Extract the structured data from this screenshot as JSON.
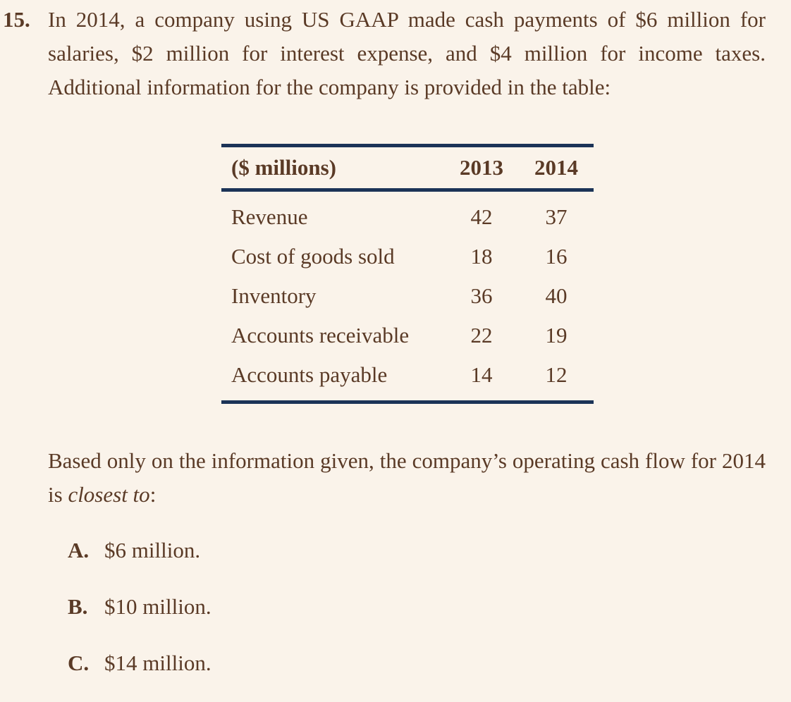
{
  "question": {
    "number": "15.",
    "stem": "In 2014, a company using US GAAP made cash payments of $6 million for salaries, $2 million for interest expense, and $4 million for income taxes. Additional information for the company is provided in the table:",
    "prompt_before": "Based only on the information given, the company’s operating cash flow for 2014 is ",
    "prompt_emphasis": "closest to",
    "prompt_after": ":"
  },
  "table": {
    "header": [
      "($ millions)",
      "2013",
      "2014"
    ],
    "rows": [
      {
        "label": "Revenue",
        "y2013": "42",
        "y2014": "37"
      },
      {
        "label": "Cost of goods sold",
        "y2013": "18",
        "y2014": "16"
      },
      {
        "label": "Inventory",
        "y2013": "36",
        "y2014": "40"
      },
      {
        "label": "Accounts receivable",
        "y2013": "22",
        "y2014": "19"
      },
      {
        "label": "Accounts payable",
        "y2013": "14",
        "y2014": "12"
      }
    ]
  },
  "options": [
    {
      "letter": "A.",
      "text": "$6 million."
    },
    {
      "letter": "B.",
      "text": "$10 million."
    },
    {
      "letter": "C.",
      "text": "$14 million."
    }
  ],
  "colors": {
    "text": "#5a3a26",
    "background": "#faf3ea",
    "table_rule": "#1b3357"
  }
}
